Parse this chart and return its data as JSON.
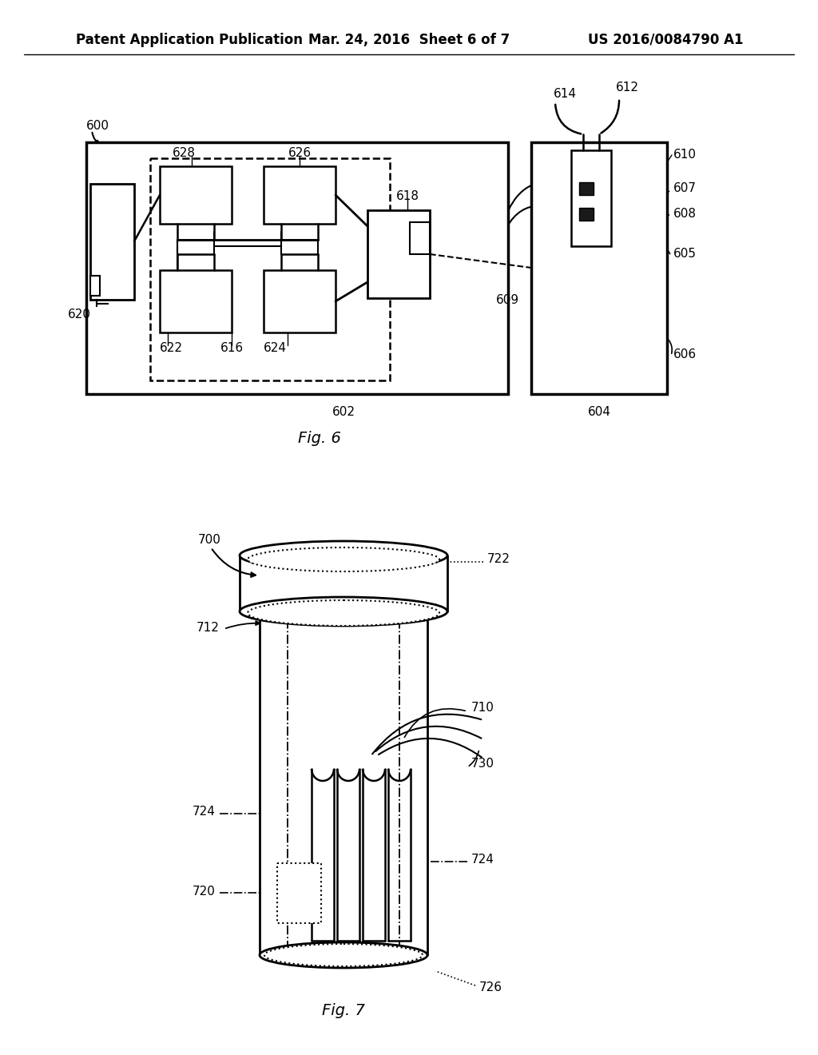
{
  "bg_color": "#ffffff",
  "line_color": "#000000",
  "text_color": "#000000",
  "header_left": "Patent Application Publication",
  "header_center": "Mar. 24, 2016  Sheet 6 of 7",
  "header_right": "US 2016/0084790 A1",
  "fig6_caption": "Fig. 6",
  "fig7_caption": "Fig. 7"
}
